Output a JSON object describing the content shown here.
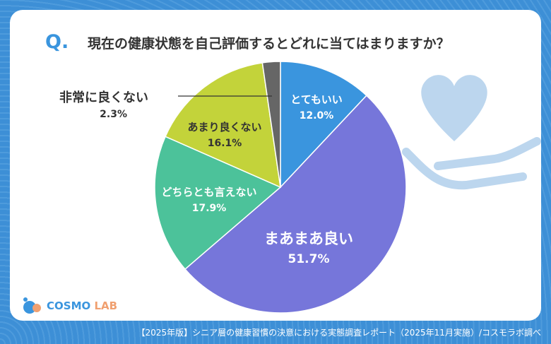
{
  "header": {
    "q": "Q.",
    "title": "現在の健康状態を自己評価するとどれに当てはまりますか？"
  },
  "chart_data": {
    "type": "pie",
    "title": "現在の健康状態を自己評価するとどれに当てはまりますか？",
    "start": "top",
    "direction": "clockwise",
    "categories": [
      "とてもいい",
      "まあまあ良い",
      "どちらとも言えない",
      "あまり良くない",
      "非常に良くない"
    ],
    "values": [
      12.0,
      51.7,
      17.9,
      16.1,
      2.3
    ],
    "labels": [
      "12.0%",
      "51.7%",
      "17.9%",
      "16.1%",
      "2.3%"
    ],
    "colors": [
      "#3a95de",
      "#7676da",
      "#4cc29a",
      "#c3d33a",
      "#666666"
    ]
  },
  "logo": {
    "text": "COSMO LAB"
  },
  "footer": "【2025年版】シニア層の健康習慣の決意における実態調査レポート（2025年11月実施）/コスモラボ調べ",
  "decor": {
    "icon": "heart-in-hand-icon"
  }
}
